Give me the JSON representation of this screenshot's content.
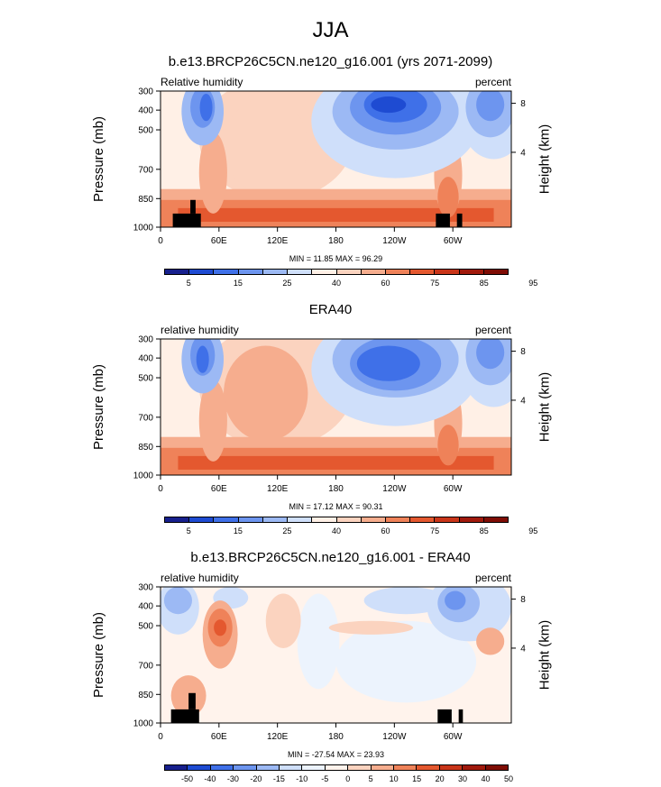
{
  "title": "JJA",
  "colors": {
    "abs": [
      "#17208d",
      "#1e4bd2",
      "#3f70e8",
      "#6d95ef",
      "#9cb9f4",
      "#cfdffa",
      "#fff0e6",
      "#fbd3bf",
      "#f6ad8e",
      "#ef8259",
      "#e4582f",
      "#c93519",
      "#a11a0c",
      "#7f0d05"
    ],
    "diff": [
      "#17208d",
      "#1e4bd2",
      "#3f70e8",
      "#6d95ef",
      "#9cb9f4",
      "#cfdffa",
      "#ecf3fd",
      "#fff3ec",
      "#fbd3bf",
      "#f6ad8e",
      "#ef8259",
      "#e4582f",
      "#c93519",
      "#a11a0c",
      "#7f0d05"
    ]
  },
  "chart_data": [
    {
      "type": "heatmap",
      "title": "b.e13.BRCP26C5CN.ne120_g16.001 (yrs 2071-2099)",
      "left_label": "Relative humidity",
      "right_label": "percent",
      "ylabel": "Pressure (mb)",
      "y2label": "Height (km)",
      "xticks": [
        "0",
        "60E",
        "120E",
        "180",
        "120W",
        "60W"
      ],
      "yticks": [
        "300",
        "400",
        "500",
        "700",
        "850",
        "1000"
      ],
      "y2ticks": [
        "8",
        "4"
      ],
      "min": "11.85",
      "max": "96.29",
      "minmax_text": "MIN =  11.85  MAX =  96.29",
      "colorbar_labels": [
        "5",
        "15",
        "25",
        "40",
        "60",
        "75",
        "85",
        "95"
      ],
      "variant": "model"
    },
    {
      "type": "heatmap",
      "title": "ERA40",
      "left_label": "relative humidity",
      "right_label": "percent",
      "ylabel": "Pressure (mb)",
      "y2label": "Height (km)",
      "xticks": [
        "0",
        "60E",
        "120E",
        "180",
        "120W",
        "60W"
      ],
      "yticks": [
        "300",
        "400",
        "500",
        "700",
        "850",
        "1000"
      ],
      "y2ticks": [
        "8",
        "4"
      ],
      "min": "17.12",
      "max": "90.31",
      "minmax_text": "MIN =  17.12  MAX =  90.31",
      "colorbar_labels": [
        "5",
        "15",
        "25",
        "40",
        "60",
        "75",
        "85",
        "95"
      ],
      "variant": "obs"
    },
    {
      "type": "heatmap",
      "title": "b.e13.BRCP26C5CN.ne120_g16.001 - ERA40",
      "left_label": "relative humidity",
      "right_label": "percent",
      "ylabel": "Pressure (mb)",
      "y2label": "Height (km)",
      "xticks": [
        "0",
        "60E",
        "120E",
        "180",
        "120W",
        "60W"
      ],
      "yticks": [
        "300",
        "400",
        "500",
        "700",
        "850",
        "1000"
      ],
      "y2ticks": [
        "8",
        "4"
      ],
      "min": "-27.54",
      "max": "23.93",
      "minmax_text": "MIN = -27.54  MAX =  23.93",
      "colorbar_labels": [
        "-50",
        "-40",
        "-30",
        "-20",
        "-15",
        "-10",
        "-5",
        "0",
        "5",
        "10",
        "15",
        "20",
        "30",
        "40",
        "50"
      ],
      "variant": "diff"
    }
  ]
}
